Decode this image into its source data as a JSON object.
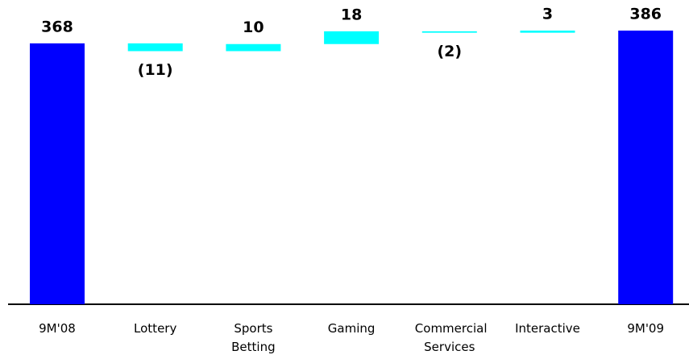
{
  "chart_data": {
    "type": "waterfall",
    "categories": [
      "9M'08",
      "Lottery",
      "Sports Betting",
      "Gaming",
      "Commercial Services",
      "Interactive",
      "9M'09"
    ],
    "values": [
      368,
      -11,
      10,
      18,
      -2,
      3,
      386
    ],
    "value_labels": [
      "368",
      "(11)",
      "10",
      "18",
      "(2)",
      "3",
      "386"
    ],
    "measures": [
      "total",
      "relative",
      "relative",
      "relative",
      "relative",
      "relative",
      "total"
    ],
    "total_color": "#0000ff",
    "change_color": "#00ffff"
  }
}
